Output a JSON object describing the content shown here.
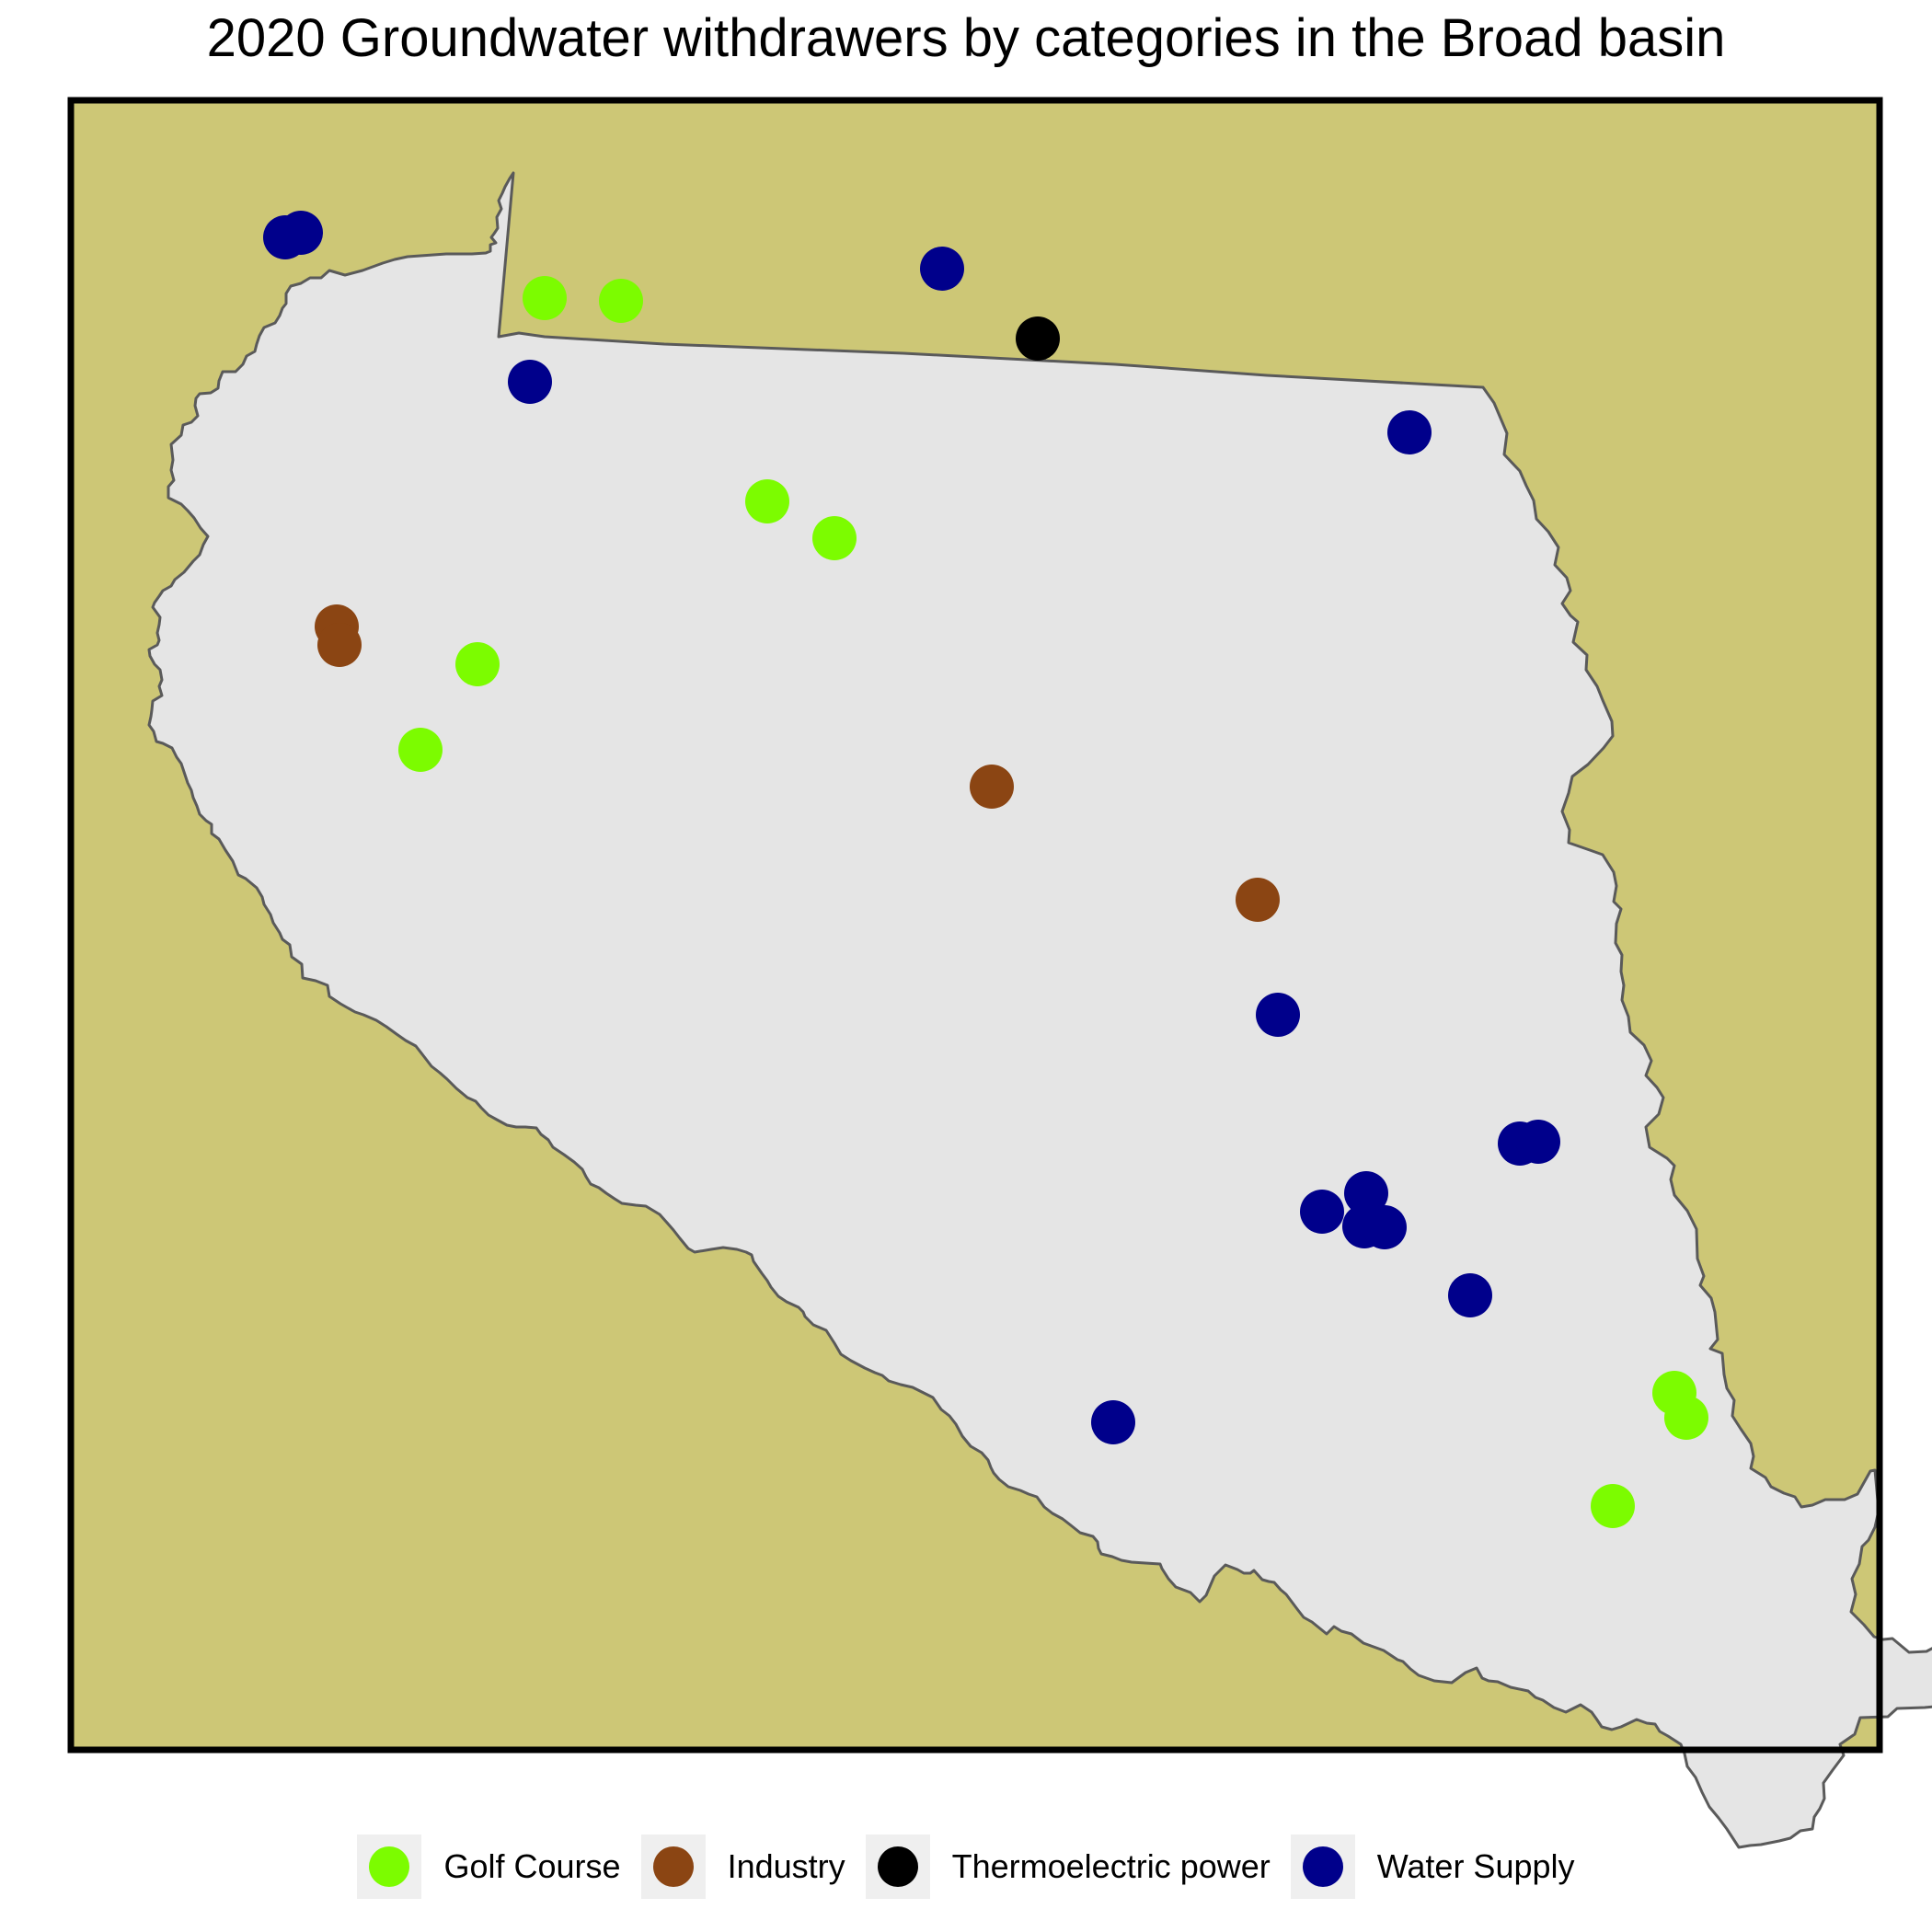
{
  "title": "2020 Groundwater withdrawers by categories in the Broad basin",
  "colors": {
    "background": "#cdc776",
    "basin_fill": "#e5e5e5",
    "basin_outline": "#5a5a5a",
    "frame": "#000000"
  },
  "legend": [
    {
      "label": "Golf Course",
      "color": "#7cfc00"
    },
    {
      "label": "Industry",
      "color": "#8b4513"
    },
    {
      "label": "Thermoelectric power",
      "color": "#000000"
    },
    {
      "label": "Water Supply",
      "color": "#00008b"
    }
  ]
}
